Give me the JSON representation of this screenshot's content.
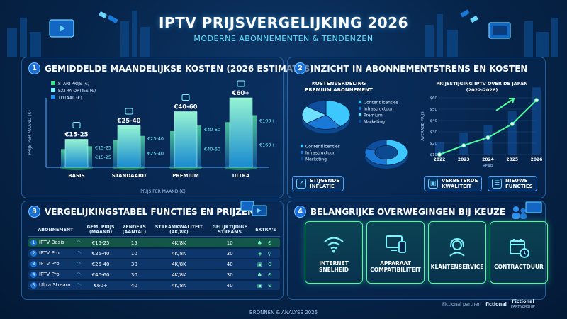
{
  "header": {
    "title": "IPTV PRIJSVERGELIJKING 2026",
    "subtitle": "MODERNE ABONNEMENTEN & TENDENZEN"
  },
  "section1": {
    "number": "1",
    "title": "GEMIDDELDE MAANDELIJKSE KOSTEN (2026 ESTIMATES)",
    "legend": [
      "STARTPRIJS (€)",
      "EXTRA OPTIES (€)",
      "TOTAAL (€)"
    ],
    "ylabel": "PRIJS PER MAAND (€)",
    "xlabel": "PRIJS PER MAAND (€)"
  },
  "section2": {
    "number": "2",
    "title": "INZICHT IN ABONNEMENTSTRENS EN KOSTEN",
    "pie_title_line1": "KOSTENVERDELING",
    "pie_title_line2": "PREMIUM ABONNEMENT",
    "trend_title_line1": "PRIJSSTIJGING IPTV OVER DE JAREN",
    "trend_title_line2": "(2022-2026)",
    "badges": [
      {
        "line1": "STIJGENDE",
        "line2": "INFLATIE",
        "icon": "trend-up-icon"
      },
      {
        "line1": "VERBETERDE",
        "line2": "KWALITEIT",
        "icon": "quality-icon"
      },
      {
        "line1": "NIEUWE",
        "line2": "FUNCTIES",
        "icon": "features-icon"
      }
    ]
  },
  "section3": {
    "number": "3",
    "title": "VERGELIJKINGSTABEL FUNCTIES EN PRIJZEN",
    "headers": [
      [
        "ABONNEMENT",
        ""
      ],
      [
        "GEM. PRIJS",
        "(MAAND)"
      ],
      [
        "ZENDERS",
        "(AANTAL)"
      ],
      [
        "STREAMKWALITEIT",
        "(4K/8K)"
      ],
      [
        "GELIJKTIJDIGE",
        "STREAMS"
      ],
      [
        "EXTRA'S",
        ""
      ]
    ],
    "rows": [
      {
        "num": "1",
        "name": "IPTV Basis",
        "price": "€15-25",
        "channels": "15",
        "quality": "4K/8K",
        "streams": "10",
        "extras": "♣ ⚙"
      },
      {
        "num": "2",
        "name": "IPTV Pro",
        "price": "€25-40",
        "channels": "10",
        "quality": "4K/8K",
        "streams": "30",
        "extras": "◈ ⚲"
      },
      {
        "num": "3",
        "name": "IPTV Pro",
        "price": "€25-40",
        "channels": "30",
        "quality": "4K/8K",
        "streams": "40",
        "extras": "▣ ⚙"
      },
      {
        "num": "4",
        "name": "IPTV Pro",
        "price": "€40-60",
        "channels": "30",
        "quality": "4K/8K",
        "streams": "30",
        "extras": "♣ ⚙"
      },
      {
        "num": "5",
        "name": "Ultra Stream",
        "price": "€60+",
        "channels": "40",
        "quality": "4K/8K",
        "streams": "40",
        "extras": "▣ ⚙"
      }
    ]
  },
  "section4": {
    "number": "4",
    "title": "BELANGRIJKE OVERWEGINGEN BIJ KEUZE",
    "cards": [
      {
        "line1": "INTERNET",
        "line2": "SNELHEID",
        "icon": "wifi-icon"
      },
      {
        "line1": "APPARAAT",
        "line2": "COMPATIBILITEIT",
        "icon": "device-icon"
      },
      {
        "line1": "KLANTENSERVICE",
        "line2": "",
        "icon": "headset-icon"
      },
      {
        "line1": "CONTRACTDUUR",
        "line2": "",
        "icon": "calendar-icon"
      }
    ]
  },
  "footer": {
    "sources": "BRONNEN & ANALYSE 2026",
    "partner_label": "Fictional partner:",
    "partner_name": "fictional",
    "partner_name2": "Fictional",
    "partner_sub": "PARTNERSHIP"
  },
  "colors": {
    "accent": "#36e27a",
    "bar_glow": "#7cf5ff",
    "background": "#062449"
  },
  "chart_data": [
    {
      "type": "bar",
      "title": "GEMIDDELDE MAANDELIJKSE KOSTEN (2026 ESTIMATES)",
      "categories": [
        "BASIS",
        "STANDAARD",
        "PREMIUM",
        "ULTRA"
      ],
      "price_labels": [
        "€15-25",
        "€25-40",
        "€40-60",
        "€60+"
      ],
      "series": [
        {
          "name": "STARTPRIJS (€)",
          "labels": [
            "€15-25",
            "€25-40",
            "€40-60",
            "€60+"
          ],
          "values": [
            15,
            25,
            40,
            60
          ]
        },
        {
          "name": "EXTRA OPTIES (€)",
          "labels": [
            "€15-25",
            "€25-40",
            "€40-60",
            "€100+"
          ],
          "values": [
            5,
            8,
            12,
            40
          ]
        },
        {
          "name": "TOTAAL (€)",
          "labels": [
            "€15-25",
            "€25-40",
            "€40-60",
            "€160+"
          ],
          "values": [
            25,
            40,
            60,
            160
          ]
        }
      ],
      "tiers": [
        1,
        2,
        3,
        4
      ],
      "xlabel": "PRIJS PER MAAND (€)",
      "ylabel": "PRIJS PER MAAND (€)"
    },
    {
      "type": "pie",
      "title": "KOSTENVERDELING PREMIUM ABONNEMENT",
      "labels": [
        "Contentlicenties",
        "Infrastructuur",
        "Premium",
        "Marketing"
      ],
      "values": [
        40,
        25,
        20,
        15
      ],
      "colors": [
        "#3cc8ff",
        "#1a78d6",
        "#6ee0ff",
        "#0d4f9e"
      ]
    },
    {
      "type": "pie",
      "title": "",
      "style": "donut",
      "labels": [
        "Contentlicenties",
        "Infrastructuur",
        "Marketing"
      ],
      "values": [
        50,
        30,
        20
      ],
      "colors": [
        "#3cc8ff",
        "#1a78d6",
        "#0d4f9e"
      ]
    },
    {
      "type": "line",
      "title": "PRIJSSTIJGING IPTV OVER DE JAREN (2022-2026)",
      "x": [
        2022,
        2023,
        2024,
        2025,
        2026
      ],
      "y": [
        10,
        18,
        25,
        37,
        58
      ],
      "xlabel": "YEAR",
      "ylabel": "AVERAGE PRIJS",
      "ylim": [
        10,
        60
      ],
      "yticks": [
        10,
        20,
        30,
        40,
        50,
        60
      ],
      "ytick_labels": [
        "$10",
        "$20",
        "$30",
        "$40",
        "$50",
        "$60"
      ]
    }
  ]
}
